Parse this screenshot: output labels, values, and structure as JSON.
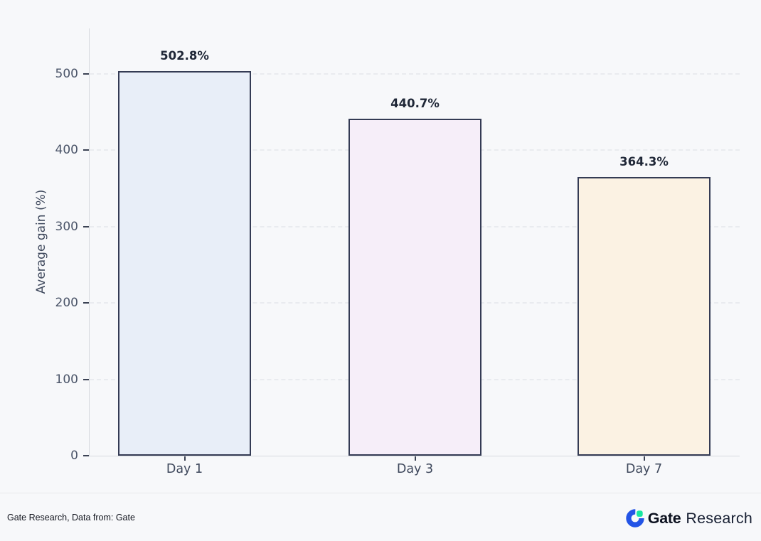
{
  "chart_data": {
    "type": "bar",
    "title": "",
    "xlabel": "",
    "ylabel": "Average gain (%)",
    "categories": [
      "Day 1",
      "Day 3",
      "Day 7"
    ],
    "values": [
      502.8,
      440.7,
      364.3
    ],
    "value_labels": [
      "502.8%",
      "440.7%",
      "364.3%"
    ],
    "yticks": [
      0,
      100,
      200,
      300,
      400,
      500
    ],
    "ylim": [
      0,
      560
    ],
    "grid": "horizontal-dashed",
    "legend": "none",
    "bar_fill_colors": [
      "#e8eef8",
      "#f6eef9",
      "#fbf2e3"
    ],
    "bar_edge_color": "#343b54"
  },
  "footer": {
    "source_text": "Gate Research, Data from: Gate",
    "logo_brand": "Gate",
    "logo_suffix": "Research"
  },
  "colors": {
    "background": "#f7f8fa",
    "axis_line": "#d7dade",
    "gridline": "#e9ebef",
    "tick_mark": "#3b4254",
    "tick_label": "#4a5468",
    "axis_title": "#3e485c",
    "value_label": "#1f2737",
    "brand_blue": "#2354e6",
    "brand_green": "#17e6a1"
  }
}
